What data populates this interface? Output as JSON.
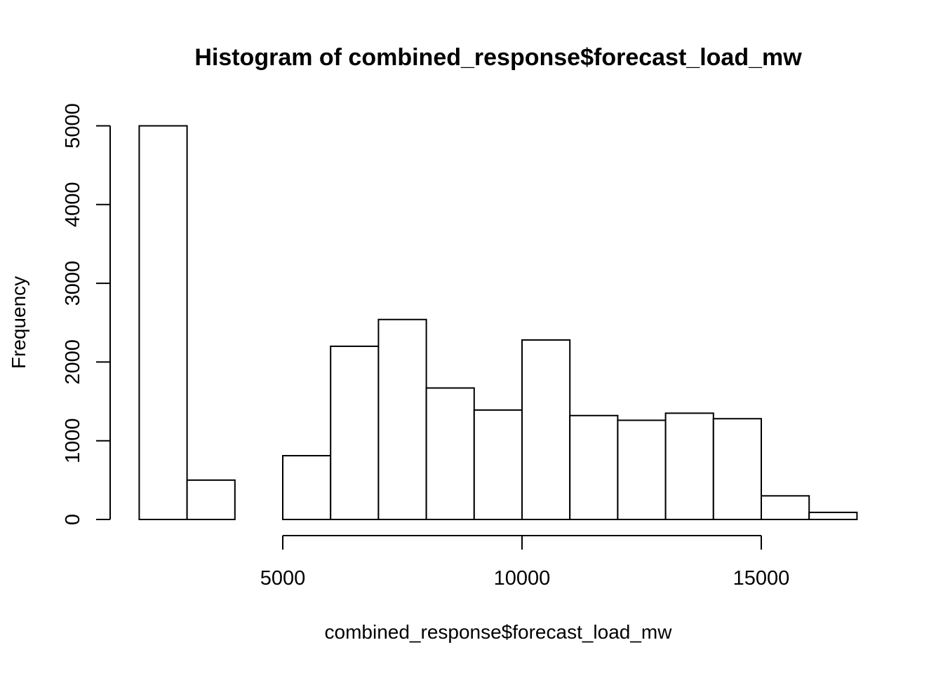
{
  "chart_data": {
    "type": "bar",
    "title": "Histogram of combined_response$forecast_load_mw",
    "xlabel": "combined_response$forecast_load_mw",
    "ylabel": "Frequency",
    "bins": [
      {
        "start": 2000,
        "end": 3000,
        "count": 5000
      },
      {
        "start": 3000,
        "end": 4000,
        "count": 500
      },
      {
        "start": 4000,
        "end": 5000,
        "count": 0
      },
      {
        "start": 5000,
        "end": 6000,
        "count": 810
      },
      {
        "start": 6000,
        "end": 7000,
        "count": 2200
      },
      {
        "start": 7000,
        "end": 8000,
        "count": 2540
      },
      {
        "start": 8000,
        "end": 9000,
        "count": 1670
      },
      {
        "start": 9000,
        "end": 10000,
        "count": 1390
      },
      {
        "start": 10000,
        "end": 11000,
        "count": 2280
      },
      {
        "start": 11000,
        "end": 12000,
        "count": 1320
      },
      {
        "start": 12000,
        "end": 13000,
        "count": 1260
      },
      {
        "start": 13000,
        "end": 14000,
        "count": 1350
      },
      {
        "start": 14000,
        "end": 15000,
        "count": 1280
      },
      {
        "start": 15000,
        "end": 16000,
        "count": 300
      },
      {
        "start": 16000,
        "end": 17000,
        "count": 90
      }
    ],
    "xticks": [
      5000,
      10000,
      15000
    ],
    "yticks": [
      0,
      1000,
      2000,
      3000,
      4000,
      5000
    ],
    "xlim": [
      5000,
      15000
    ],
    "ylim": [
      0,
      5000
    ],
    "grid": false,
    "legend": "none"
  }
}
